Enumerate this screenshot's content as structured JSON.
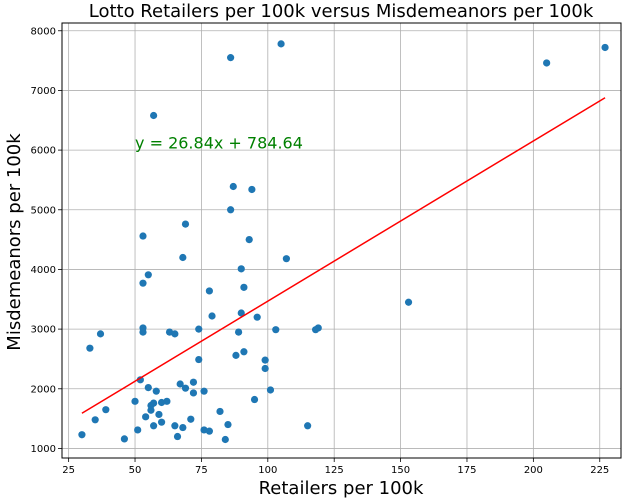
{
  "chart_data": {
    "type": "scatter",
    "title": "Lotto Retailers per 100k versus Misdemeanors per 100k",
    "xlabel": "Retailers per 100k",
    "ylabel": "Misdemeanors per 100k",
    "xlim": [
      22.5,
      233
    ],
    "ylim": [
      840,
      8130
    ],
    "x_ticks": [
      25,
      50,
      75,
      100,
      125,
      150,
      175,
      200,
      225
    ],
    "x_tick_labels": [
      "25",
      "50",
      "75",
      "100",
      "125",
      "150",
      "175",
      "200",
      "225"
    ],
    "y_ticks": [
      1000,
      2000,
      3000,
      4000,
      5000,
      6000,
      7000,
      8000
    ],
    "y_tick_labels": [
      "1000",
      "2000",
      "3000",
      "4000",
      "5000",
      "6000",
      "7000",
      "8000"
    ],
    "grid": true,
    "point_color": "#1f77b4",
    "points": [
      [
        30,
        1230
      ],
      [
        33,
        2680
      ],
      [
        35,
        1480
      ],
      [
        37,
        2920
      ],
      [
        39,
        1650
      ],
      [
        46,
        1160
      ],
      [
        50,
        1790
      ],
      [
        51,
        1310
      ],
      [
        52,
        2150
      ],
      [
        53,
        3020
      ],
      [
        53,
        2950
      ],
      [
        53,
        3770
      ],
      [
        53,
        4560
      ],
      [
        54,
        1530
      ],
      [
        55,
        3910
      ],
      [
        55,
        2020
      ],
      [
        56,
        1640
      ],
      [
        56,
        1720
      ],
      [
        57,
        1760
      ],
      [
        57,
        1380
      ],
      [
        57,
        6580
      ],
      [
        58,
        1960
      ],
      [
        59,
        1570
      ],
      [
        60,
        1770
      ],
      [
        60,
        1440
      ],
      [
        62,
        1790
      ],
      [
        63,
        2950
      ],
      [
        65,
        2920
      ],
      [
        65,
        1380
      ],
      [
        66,
        1200
      ],
      [
        67,
        2080
      ],
      [
        68,
        4200
      ],
      [
        68,
        1350
      ],
      [
        69,
        4760
      ],
      [
        69,
        2010
      ],
      [
        71,
        1490
      ],
      [
        72,
        2110
      ],
      [
        72,
        1930
      ],
      [
        74,
        2490
      ],
      [
        74,
        3000
      ],
      [
        76,
        1310
      ],
      [
        76,
        1960
      ],
      [
        78,
        3640
      ],
      [
        78,
        1290
      ],
      [
        79,
        3220
      ],
      [
        82,
        1620
      ],
      [
        84,
        1150
      ],
      [
        85,
        1400
      ],
      [
        86,
        7550
      ],
      [
        86,
        5000
      ],
      [
        87,
        5390
      ],
      [
        88,
        2560
      ],
      [
        89,
        2950
      ],
      [
        90,
        4010
      ],
      [
        90,
        3270
      ],
      [
        91,
        3700
      ],
      [
        91,
        2620
      ],
      [
        93,
        4500
      ],
      [
        94,
        5340
      ],
      [
        95,
        1820
      ],
      [
        96,
        3200
      ],
      [
        99,
        2340
      ],
      [
        99,
        2480
      ],
      [
        101,
        1980
      ],
      [
        103,
        2990
      ],
      [
        105,
        7780
      ],
      [
        107,
        4180
      ],
      [
        115,
        1380
      ],
      [
        118,
        2990
      ],
      [
        119,
        3020
      ],
      [
        153,
        3450
      ],
      [
        205,
        7460
      ],
      [
        227,
        7720
      ]
    ],
    "regression": {
      "slope": 26.84,
      "intercept": 784.64,
      "x_range": [
        30,
        227
      ],
      "color": "#ff0000",
      "label": "y = 26.84x + 784.64",
      "label_color": "#008000",
      "label_position": [
        50,
        6030
      ]
    }
  }
}
